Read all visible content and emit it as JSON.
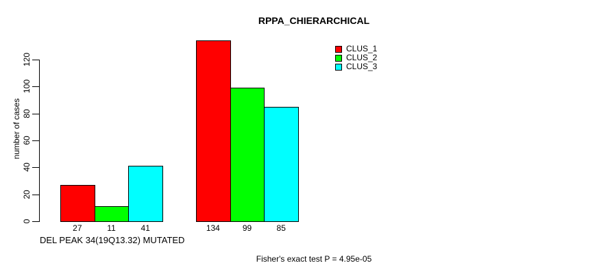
{
  "title": "RPPA_CHIERARCHICAL",
  "y_axis": {
    "label": "number of cases",
    "tick_labels": [
      "0",
      "20",
      "40",
      "60",
      "80",
      "100",
      "120"
    ]
  },
  "x_axis": {
    "group_label": "DEL PEAK 34(19Q13.32) MUTATED"
  },
  "footnote": "Fisher's exact test P = 4.95e-05",
  "legend": {
    "items": [
      {
        "label": "CLUS_1",
        "color": "#ff0000"
      },
      {
        "label": "CLUS_2",
        "color": "#00ff00"
      },
      {
        "label": "CLUS_3",
        "color": "#00ffff"
      }
    ]
  },
  "chart_data": {
    "type": "bar",
    "title": "RPPA_CHIERARCHICAL",
    "xlabel": "DEL PEAK 34(19Q13.32) MUTATED",
    "ylabel": "number of cases",
    "ylim": [
      0,
      134
    ],
    "yticks": [
      0,
      20,
      40,
      60,
      80,
      100,
      120
    ],
    "grid": false,
    "legend_position": "top-right",
    "categories": [
      "DEL PEAK 34(19Q13.32) MUTATED",
      ""
    ],
    "series": [
      {
        "name": "CLUS_1",
        "color": "#ff0000",
        "values": [
          27,
          134
        ]
      },
      {
        "name": "CLUS_2",
        "color": "#00ff00",
        "values": [
          11,
          99
        ]
      },
      {
        "name": "CLUS_3",
        "color": "#00ffff",
        "values": [
          41,
          85
        ]
      }
    ],
    "bar_value_labels": [
      [
        27,
        11,
        41
      ],
      [
        134,
        99,
        85
      ]
    ],
    "annotation": "Fisher's exact test P = 4.95e-05"
  }
}
